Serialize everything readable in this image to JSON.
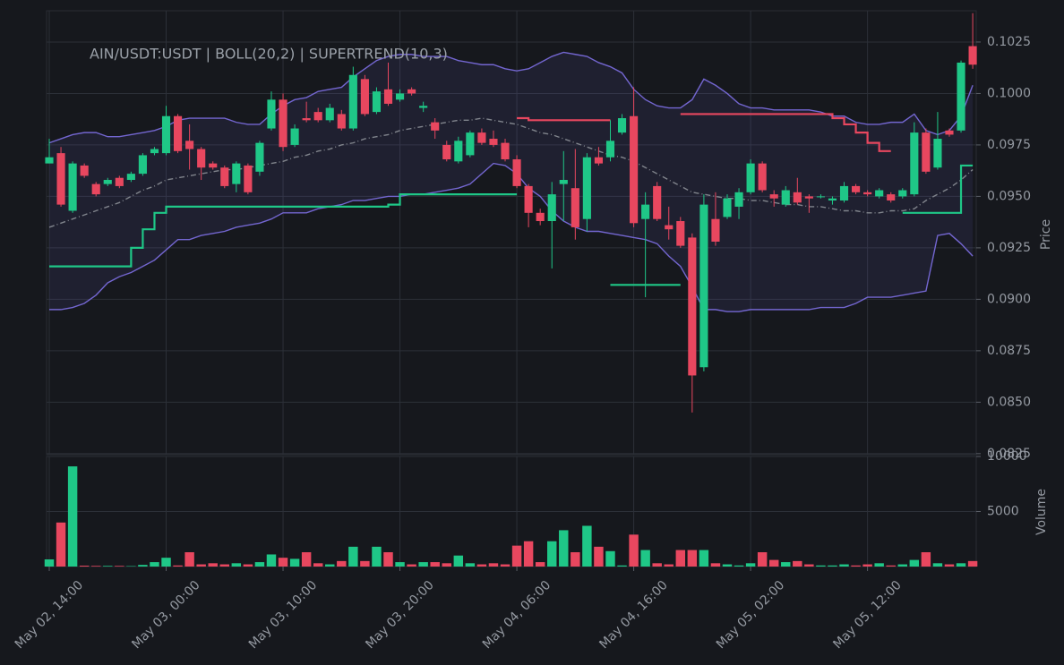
{
  "chart_data": [
    {
      "type": "candlestick",
      "title": "AIN/USDT:USDT | BOLL(20,2) | SUPERTREND(10,3)",
      "ylabel": "Price",
      "xlim": [
        -0.23,
        79.3
      ],
      "ylim": [
        0.08245,
        0.10402
      ],
      "yticks": [
        0.0825,
        {
          "value": 0.085,
          "label": "0.0850"
        },
        0.0875,
        {
          "value": 0.09,
          "label": "0.0900"
        },
        0.0925,
        {
          "value": 0.095,
          "label": "0.0950"
        },
        0.0975,
        {
          "value": 0.1,
          "label": "0.1000"
        },
        0.1025
      ],
      "grid": true,
      "up_color": "#1fc787",
      "down_color": "#e8475f",
      "open": [
        0.0966,
        0.0971,
        0.0943,
        0.0965,
        0.0956,
        0.0956,
        0.0959,
        0.0958,
        0.0961,
        0.0971,
        0.0971,
        0.0989,
        0.0977,
        0.0973,
        0.0966,
        0.0964,
        0.0956,
        0.0965,
        0.0962,
        0.0983,
        0.0997,
        0.0975,
        0.0988,
        0.0991,
        0.0987,
        0.099,
        0.0983,
        0.1007,
        0.0991,
        0.1002,
        0.0997,
        0.1002,
        0.0993,
        0.0986,
        0.0975,
        0.0967,
        0.097,
        0.0981,
        0.0978,
        0.0976,
        0.0968,
        0.0955,
        0.0942,
        0.0938,
        0.0956,
        0.0954,
        0.0939,
        0.0969,
        0.0969,
        0.0981,
        0.0989,
        0.0939,
        0.0955,
        0.0936,
        0.0938,
        0.093,
        0.0867,
        0.0939,
        0.094,
        0.0945,
        0.0952,
        0.0966,
        0.0951,
        0.0946,
        0.0952,
        0.095,
        0.095,
        0.0948,
        0.0948,
        0.0955,
        0.0952,
        0.095,
        0.0951,
        0.095,
        0.0951,
        0.0981,
        0.0964,
        0.0982,
        0.0982,
        0.1023
      ],
      "high": [
        0.0978,
        0.0974,
        0.0967,
        0.0966,
        0.0957,
        0.0959,
        0.096,
        0.0962,
        0.0971,
        0.0974,
        0.0994,
        0.099,
        0.0985,
        0.0974,
        0.0967,
        0.0965,
        0.0967,
        0.0966,
        0.0977,
        0.1001,
        0.1,
        0.0985,
        0.0996,
        0.0993,
        0.0995,
        0.0992,
        0.1013,
        0.1009,
        0.1003,
        0.1015,
        0.1002,
        0.1003,
        0.0996,
        0.0988,
        0.0977,
        0.0979,
        0.0982,
        0.0983,
        0.0982,
        0.0978,
        0.097,
        0.0956,
        0.0944,
        0.0957,
        0.0972,
        0.0973,
        0.0971,
        0.0974,
        0.0987,
        0.099,
        0.1003,
        0.0952,
        0.0957,
        0.0945,
        0.094,
        0.0932,
        0.0951,
        0.0952,
        0.0951,
        0.0954,
        0.0968,
        0.0967,
        0.0953,
        0.0955,
        0.0959,
        0.0951,
        0.0951,
        0.095,
        0.0957,
        0.0956,
        0.0953,
        0.0954,
        0.0952,
        0.0954,
        0.0986,
        0.0983,
        0.0991,
        0.0983,
        0.1016,
        0.1039
      ],
      "low": [
        0.0966,
        0.0945,
        0.0942,
        0.0959,
        0.095,
        0.0955,
        0.0954,
        0.0957,
        0.096,
        0.097,
        0.097,
        0.0971,
        0.0963,
        0.0958,
        0.0963,
        0.0954,
        0.0952,
        0.0951,
        0.096,
        0.0982,
        0.0972,
        0.0974,
        0.0986,
        0.0986,
        0.0986,
        0.0982,
        0.0982,
        0.0989,
        0.099,
        0.0994,
        0.0996,
        0.0999,
        0.0991,
        0.0978,
        0.0967,
        0.0966,
        0.0969,
        0.0975,
        0.0974,
        0.0967,
        0.0954,
        0.0935,
        0.0936,
        0.0915,
        0.0938,
        0.0929,
        0.0933,
        0.0965,
        0.0967,
        0.098,
        0.0935,
        0.0901,
        0.0938,
        0.0929,
        0.0925,
        0.0845,
        0.0865,
        0.0926,
        0.0939,
        0.0939,
        0.0951,
        0.0952,
        0.0945,
        0.0945,
        0.0946,
        0.0942,
        0.0949,
        0.0946,
        0.0947,
        0.0951,
        0.095,
        0.0949,
        0.0947,
        0.0949,
        0.095,
        0.0961,
        0.0963,
        0.0979,
        0.0981,
        0.1012
      ],
      "close": [
        0.0969,
        0.0946,
        0.0966,
        0.096,
        0.0951,
        0.0958,
        0.0955,
        0.0961,
        0.097,
        0.0973,
        0.0989,
        0.0972,
        0.0973,
        0.0964,
        0.0964,
        0.0955,
        0.0966,
        0.0952,
        0.0976,
        0.0997,
        0.0974,
        0.0983,
        0.0987,
        0.0987,
        0.0993,
        0.0983,
        0.1009,
        0.099,
        0.1001,
        0.0995,
        0.1,
        0.1,
        0.0994,
        0.0982,
        0.0968,
        0.0977,
        0.0981,
        0.0976,
        0.0975,
        0.0968,
        0.0955,
        0.0942,
        0.0938,
        0.0951,
        0.0958,
        0.0935,
        0.0969,
        0.0966,
        0.0977,
        0.0988,
        0.0937,
        0.0946,
        0.0939,
        0.0934,
        0.0926,
        0.0863,
        0.0946,
        0.0928,
        0.0949,
        0.0952,
        0.0966,
        0.0953,
        0.0949,
        0.0953,
        0.0947,
        0.0949,
        0.095,
        0.0949,
        0.0955,
        0.0952,
        0.0951,
        0.0953,
        0.0948,
        0.0953,
        0.0981,
        0.0962,
        0.0978,
        0.098,
        0.1015,
        0.1014
      ],
      "band_fill": "rgba(110,100,210,0.11)",
      "lines": [
        {
          "color": "#7366d0",
          "values": [
            0.0976,
            0.0978,
            0.098,
            0.0981,
            0.0981,
            0.0979,
            0.0979,
            0.098,
            0.0981,
            0.0982,
            0.0984,
            0.0987,
            0.0988,
            0.0988,
            0.0988,
            0.0988,
            0.0986,
            0.0985,
            0.0985,
            0.099,
            0.0994,
            0.0997,
            0.0998,
            0.1001,
            0.1002,
            0.1003,
            0.1008,
            0.1012,
            0.1016,
            0.1018,
            0.1019,
            0.1019,
            0.1018,
            0.1018,
            0.1018,
            0.1016,
            0.1015,
            0.1014,
            0.1014,
            0.1012,
            0.1011,
            0.1012,
            0.1015,
            0.1018,
            0.102,
            0.1019,
            0.1018,
            0.1015,
            0.1013,
            0.101,
            0.1002,
            0.0997,
            0.0994,
            0.0993,
            0.0993,
            0.0997,
            0.1007,
            0.1004,
            0.1,
            0.0995,
            0.0993,
            0.0993,
            0.0992,
            0.0992,
            0.0992,
            0.0992,
            0.0991,
            0.0989,
            0.0989,
            0.0986,
            0.0985,
            0.0985,
            0.0986,
            0.0986,
            0.099,
            0.0982,
            0.098,
            0.0982,
            0.0989,
            0.1004
          ]
        },
        {
          "color": "#80848c",
          "dash": true,
          "values": [
            0.0935,
            0.0937,
            0.0939,
            0.0941,
            0.0943,
            0.0945,
            0.0947,
            0.095,
            0.0953,
            0.0955,
            0.0958,
            0.0959,
            0.096,
            0.0961,
            0.0962,
            0.0963,
            0.0963,
            0.0964,
            0.0965,
            0.0966,
            0.0967,
            0.0969,
            0.097,
            0.0972,
            0.0973,
            0.0975,
            0.0976,
            0.0978,
            0.0979,
            0.098,
            0.0982,
            0.0983,
            0.0984,
            0.0985,
            0.0986,
            0.0987,
            0.0987,
            0.0988,
            0.0987,
            0.0986,
            0.0985,
            0.0983,
            0.0981,
            0.098,
            0.0978,
            0.0976,
            0.0974,
            0.0972,
            0.097,
            0.0969,
            0.0967,
            0.0964,
            0.0961,
            0.0958,
            0.0955,
            0.0952,
            0.0951,
            0.095,
            0.0949,
            0.0949,
            0.0948,
            0.0948,
            0.0947,
            0.0946,
            0.0946,
            0.0945,
            0.0945,
            0.0944,
            0.0943,
            0.0943,
            0.0942,
            0.0942,
            0.0943,
            0.0943,
            0.0944,
            0.0948,
            0.0951,
            0.0954,
            0.0958,
            0.0963
          ]
        },
        {
          "color": "#7366d0",
          "values": [
            0.0895,
            0.0895,
            0.0896,
            0.0898,
            0.0902,
            0.0908,
            0.0911,
            0.0913,
            0.0916,
            0.0919,
            0.0924,
            0.0929,
            0.0929,
            0.0931,
            0.0932,
            0.0933,
            0.0935,
            0.0936,
            0.0937,
            0.0939,
            0.0942,
            0.0942,
            0.0942,
            0.0944,
            0.0945,
            0.0946,
            0.0948,
            0.0948,
            0.0949,
            0.095,
            0.095,
            0.0951,
            0.0951,
            0.0952,
            0.0953,
            0.0954,
            0.0956,
            0.0961,
            0.0966,
            0.0965,
            0.0961,
            0.0954,
            0.095,
            0.0943,
            0.0938,
            0.0935,
            0.0933,
            0.0933,
            0.0932,
            0.0931,
            0.093,
            0.0929,
            0.0927,
            0.0921,
            0.0916,
            0.0906,
            0.0895,
            0.0895,
            0.0894,
            0.0894,
            0.0895,
            0.0895,
            0.0895,
            0.0895,
            0.0895,
            0.0895,
            0.0896,
            0.0896,
            0.0896,
            0.0898,
            0.0901,
            0.0901,
            0.0901,
            0.0902,
            0.0903,
            0.0904,
            0.0931,
            0.0932,
            0.0927,
            0.0921
          ]
        }
      ],
      "steps": [
        {
          "color": "#1fc787",
          "values": [
            0.0916,
            0.0916,
            0.0916,
            0.0916,
            0.0916,
            0.0916,
            0.0916,
            0.0925,
            0.0934,
            0.0942,
            0.0945,
            0.0945,
            0.0945,
            0.0945,
            0.0945,
            0.0945,
            0.0945,
            0.0945,
            0.0945,
            0.0945,
            0.0945,
            0.0945,
            0.0945,
            0.0945,
            0.0945,
            0.0945,
            0.0945,
            0.0945,
            0.0945,
            0.0946,
            0.0951,
            0.0951,
            0.0951,
            0.0951,
            0.0951,
            0.0951,
            0.0951,
            0.0951,
            0.0951,
            0.0951,
            0.0951,
            null,
            null,
            null,
            null,
            null,
            null,
            null,
            0.0907,
            0.0907,
            0.0907,
            0.0907,
            0.0907,
            0.0907,
            0.0907,
            null,
            null,
            null,
            null,
            null,
            null,
            null,
            null,
            null,
            null,
            null,
            null,
            null,
            null,
            null,
            null,
            null,
            null,
            0.0942,
            0.0942,
            0.0942,
            0.0942,
            0.0942,
            0.0965,
            0.0965
          ]
        },
        {
          "color": "#e8475f",
          "values": [
            null,
            null,
            null,
            null,
            null,
            null,
            null,
            null,
            null,
            null,
            null,
            null,
            null,
            null,
            null,
            null,
            null,
            null,
            null,
            null,
            null,
            null,
            null,
            null,
            null,
            null,
            null,
            null,
            null,
            null,
            null,
            null,
            null,
            null,
            null,
            null,
            null,
            null,
            null,
            null,
            0.0988,
            0.0987,
            0.0987,
            0.0987,
            0.0987,
            0.0987,
            0.0987,
            0.0987,
            0.0987,
            null,
            null,
            null,
            null,
            null,
            0.099,
            0.099,
            0.099,
            0.099,
            0.099,
            0.099,
            0.099,
            0.099,
            0.099,
            0.099,
            0.099,
            0.099,
            0.099,
            0.0988,
            0.0985,
            0.0981,
            0.0976,
            0.0972,
            0.0972,
            null,
            null,
            null,
            null,
            null,
            null,
            null
          ]
        }
      ]
    },
    {
      "type": "bar",
      "ylabel": "Volume",
      "ylim": [
        0,
        10000
      ],
      "yticks": [
        5000,
        10000
      ],
      "grid": true,
      "xticks": [
        {
          "value": 0,
          "label": "May 02, 14:00"
        },
        {
          "value": 10,
          "label": "May 03, 00:00"
        },
        {
          "value": 20,
          "label": "May 03, 10:00"
        },
        {
          "value": 30,
          "label": "May 03, 20:00"
        },
        {
          "value": 40,
          "label": "May 04, 06:00"
        },
        {
          "value": 50,
          "label": "May 04, 16:00"
        },
        {
          "value": 60,
          "label": "May 05, 02:00"
        },
        {
          "value": 70,
          "label": "May 05, 12:00"
        }
      ],
      "values": [
        650,
        4000,
        9100,
        80,
        60,
        60,
        60,
        40,
        150,
        400,
        800,
        100,
        1300,
        200,
        300,
        200,
        300,
        200,
        400,
        1100,
        800,
        700,
        1300,
        300,
        200,
        500,
        1800,
        500,
        1800,
        1300,
        400,
        200,
        400,
        400,
        300,
        1000,
        300,
        200,
        300,
        200,
        1900,
        2300,
        400,
        2300,
        3300,
        1300,
        3700,
        1800,
        1400,
        100,
        2900,
        1500,
        300,
        200,
        1500,
        1500,
        1500,
        300,
        200,
        100,
        300,
        1300,
        600,
        400,
        500,
        200,
        100,
        100,
        200,
        100,
        200,
        300,
        100,
        200,
        600,
        1300,
        300,
        200,
        300,
        500
      ]
    }
  ]
}
